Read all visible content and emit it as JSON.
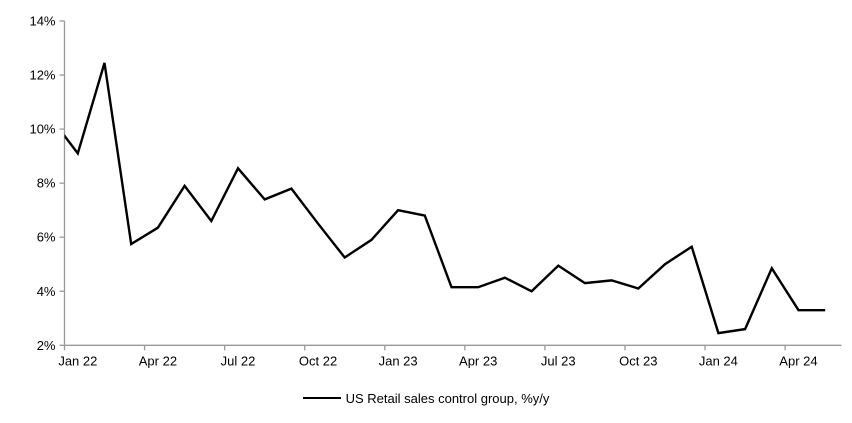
{
  "chart_data": {
    "type": "line",
    "title": "",
    "legend": "US Retail sales control group, %y/y",
    "x": [
      "Dec 21",
      "Jan 22",
      "Feb 22",
      "Mar 22",
      "Apr 22",
      "May 22",
      "Jun 22",
      "Jul 22",
      "Aug 22",
      "Sep 22",
      "Oct 22",
      "Nov 22",
      "Dec 22",
      "Jan 23",
      "Feb 23",
      "Mar 23",
      "Apr 23",
      "May 23",
      "Jun 23",
      "Jul 23",
      "Aug 23",
      "Sep 23",
      "Oct 23",
      "Nov 23",
      "Dec 23",
      "Jan 24",
      "Feb 24",
      "Mar 24",
      "Apr 24",
      "May 24"
    ],
    "values": [
      10.4,
      9.1,
      12.45,
      5.75,
      6.35,
      7.9,
      6.6,
      8.55,
      7.4,
      7.8,
      6.5,
      5.25,
      5.9,
      7.0,
      6.8,
      4.15,
      4.15,
      4.5,
      4.0,
      4.95,
      4.3,
      4.4,
      4.1,
      5.0,
      5.65,
      2.45,
      2.6,
      4.85,
      3.3,
      3.3
    ],
    "first_point_clipped_at_left_edge": true,
    "x_tick_labels": [
      "Jan 22",
      "Apr 22",
      "Jul 22",
      "Oct 22",
      "Jan 23",
      "Apr 23",
      "Jul 23",
      "Oct 23",
      "Jan 24",
      "Apr 24"
    ],
    "x_tick_every_n_points": 3,
    "y_tick_labels": [
      "14%",
      "12%",
      "10%",
      "8%",
      "6%",
      "4%",
      "2%"
    ],
    "y_tick_values": [
      14,
      12,
      10,
      8,
      6,
      4,
      2
    ],
    "ylim": [
      2,
      14
    ],
    "grid": false,
    "legend_position": "bottom-center",
    "line_color": "#000000",
    "axis_color": "#999999",
    "text_color": "#000000",
    "background_color": "#ffffff"
  }
}
